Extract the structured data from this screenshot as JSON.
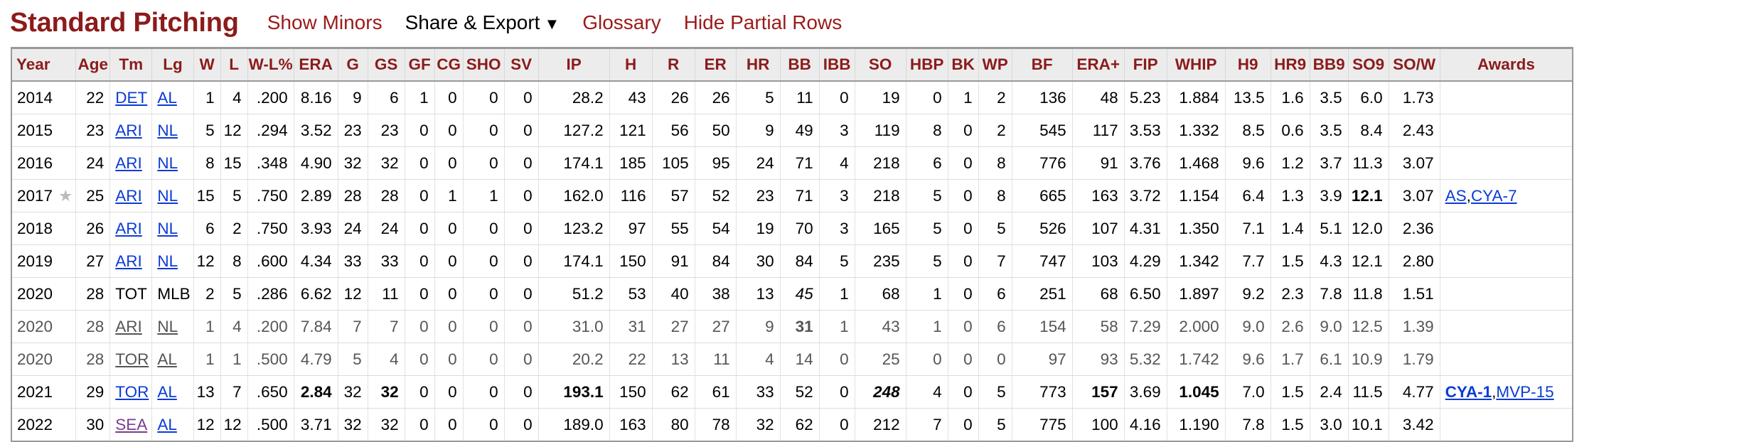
{
  "header": {
    "title": "Standard Pitching",
    "show_minors": "Show Minors",
    "share_export": "Share & Export",
    "share_caret": "▼",
    "glossary": "Glossary",
    "hide_partial": "Hide Partial Rows"
  },
  "table": {
    "columns": [
      "Year",
      "Age",
      "Tm",
      "Lg",
      "W",
      "L",
      "W-L%",
      "ERA",
      "G",
      "GS",
      "GF",
      "CG",
      "SHO",
      "SV",
      "IP",
      "H",
      "R",
      "ER",
      "HR",
      "BB",
      "IBB",
      "SO",
      "HBP",
      "BK",
      "WP",
      "BF",
      "ERA+",
      "FIP",
      "WHIP",
      "H9",
      "HR9",
      "BB9",
      "SO9",
      "SO/W",
      "Awards"
    ],
    "rows": [
      {
        "year": "2014",
        "age": "22",
        "tm": "DET",
        "lg": "AL",
        "w": "1",
        "l": "4",
        "wlp": ".200",
        "era": "8.16",
        "g": "9",
        "gs": "6",
        "gf": "1",
        "cg": "0",
        "sho": "0",
        "sv": "0",
        "ip": "28.2",
        "h": "43",
        "r": "26",
        "er": "26",
        "hr": "5",
        "bb": "11",
        "ibb": "0",
        "so": "19",
        "hbp": "0",
        "bk": "1",
        "wp": "2",
        "bf": "136",
        "eraplus": "48",
        "fip": "5.23",
        "whip": "1.884",
        "h9": "13.5",
        "hr9": "1.6",
        "bb9": "3.5",
        "so9": "6.0",
        "sow": "1.73",
        "awards": []
      },
      {
        "year": "2015",
        "age": "23",
        "tm": "ARI",
        "lg": "NL",
        "w": "5",
        "l": "12",
        "wlp": ".294",
        "era": "3.52",
        "g": "23",
        "gs": "23",
        "gf": "0",
        "cg": "0",
        "sho": "0",
        "sv": "0",
        "ip": "127.2",
        "h": "121",
        "r": "56",
        "er": "50",
        "hr": "9",
        "bb": "49",
        "ibb": "3",
        "so": "119",
        "hbp": "8",
        "bk": "0",
        "wp": "2",
        "bf": "545",
        "eraplus": "117",
        "fip": "3.53",
        "whip": "1.332",
        "h9": "8.5",
        "hr9": "0.6",
        "bb9": "3.5",
        "so9": "8.4",
        "sow": "2.43",
        "awards": []
      },
      {
        "year": "2016",
        "age": "24",
        "tm": "ARI",
        "lg": "NL",
        "w": "8",
        "l": "15",
        "wlp": ".348",
        "era": "4.90",
        "g": "32",
        "gs": "32",
        "gf": "0",
        "cg": "0",
        "sho": "0",
        "sv": "0",
        "ip": "174.1",
        "h": "185",
        "r": "105",
        "er": "95",
        "hr": "24",
        "bb": "71",
        "ibb": "4",
        "so": "218",
        "hbp": "6",
        "bk": "0",
        "wp": "8",
        "bf": "776",
        "eraplus": "91",
        "fip": "3.76",
        "whip": "1.468",
        "h9": "9.6",
        "hr9": "1.2",
        "bb9": "3.7",
        "so9": "11.3",
        "sow": "3.07",
        "awards": []
      },
      {
        "year": "2017",
        "star": "★",
        "age": "25",
        "tm": "ARI",
        "lg": "NL",
        "w": "15",
        "l": "5",
        "wlp": ".750",
        "era": "2.89",
        "g": "28",
        "gs": "28",
        "gf": "0",
        "cg": "1",
        "sho": "1",
        "sv": "0",
        "ip": "162.0",
        "h": "116",
        "r": "57",
        "er": "52",
        "hr": "23",
        "bb": "71",
        "ibb": "3",
        "so": "218",
        "hbp": "5",
        "bk": "0",
        "wp": "8",
        "bf": "665",
        "eraplus": "163",
        "fip": "3.72",
        "whip": "1.154",
        "h9": "6.4",
        "hr9": "1.3",
        "bb9": "3.9",
        "so9": "12.1",
        "sow": "3.07",
        "awards": [
          "AS",
          "CYA-7"
        ]
      },
      {
        "year": "2018",
        "age": "26",
        "tm": "ARI",
        "lg": "NL",
        "w": "6",
        "l": "2",
        "wlp": ".750",
        "era": "3.93",
        "g": "24",
        "gs": "24",
        "gf": "0",
        "cg": "0",
        "sho": "0",
        "sv": "0",
        "ip": "123.2",
        "h": "97",
        "r": "55",
        "er": "54",
        "hr": "19",
        "bb": "70",
        "ibb": "3",
        "so": "165",
        "hbp": "5",
        "bk": "0",
        "wp": "5",
        "bf": "526",
        "eraplus": "107",
        "fip": "4.31",
        "whip": "1.350",
        "h9": "7.1",
        "hr9": "1.4",
        "bb9": "5.1",
        "so9": "12.0",
        "sow": "2.36",
        "awards": []
      },
      {
        "year": "2019",
        "age": "27",
        "tm": "ARI",
        "lg": "NL",
        "w": "12",
        "l": "8",
        "wlp": ".600",
        "era": "4.34",
        "g": "33",
        "gs": "33",
        "gf": "0",
        "cg": "0",
        "sho": "0",
        "sv": "0",
        "ip": "174.1",
        "h": "150",
        "r": "91",
        "er": "84",
        "hr": "30",
        "bb": "84",
        "ibb": "5",
        "so": "235",
        "hbp": "5",
        "bk": "0",
        "wp": "7",
        "bf": "747",
        "eraplus": "103",
        "fip": "4.29",
        "whip": "1.342",
        "h9": "7.7",
        "hr9": "1.5",
        "bb9": "4.3",
        "so9": "12.1",
        "sow": "2.80",
        "awards": []
      },
      {
        "year": "2020",
        "age": "28",
        "tm": "TOT",
        "lg": "MLB",
        "w": "2",
        "l": "5",
        "wlp": ".286",
        "era": "6.62",
        "g": "12",
        "gs": "11",
        "gf": "0",
        "cg": "0",
        "sho": "0",
        "sv": "0",
        "ip": "51.2",
        "h": "53",
        "r": "40",
        "er": "38",
        "hr": "13",
        "bb": "45",
        "ibb": "1",
        "so": "68",
        "hbp": "1",
        "bk": "0",
        "wp": "6",
        "bf": "251",
        "eraplus": "68",
        "fip": "6.50",
        "whip": "1.897",
        "h9": "9.2",
        "hr9": "2.3",
        "bb9": "7.8",
        "so9": "11.8",
        "sow": "1.51",
        "awards": []
      },
      {
        "year": "2020",
        "age": "28",
        "tm": "ARI",
        "lg": "NL",
        "w": "1",
        "l": "4",
        "wlp": ".200",
        "era": "7.84",
        "g": "7",
        "gs": "7",
        "gf": "0",
        "cg": "0",
        "sho": "0",
        "sv": "0",
        "ip": "31.0",
        "h": "31",
        "r": "27",
        "er": "27",
        "hr": "9",
        "bb": "31",
        "ibb": "1",
        "so": "43",
        "hbp": "1",
        "bk": "0",
        "wp": "6",
        "bf": "154",
        "eraplus": "58",
        "fip": "7.29",
        "whip": "2.000",
        "h9": "9.0",
        "hr9": "2.6",
        "bb9": "9.0",
        "so9": "12.5",
        "sow": "1.39",
        "awards": []
      },
      {
        "year": "2020",
        "age": "28",
        "tm": "TOR",
        "lg": "AL",
        "w": "1",
        "l": "1",
        "wlp": ".500",
        "era": "4.79",
        "g": "5",
        "gs": "4",
        "gf": "0",
        "cg": "0",
        "sho": "0",
        "sv": "0",
        "ip": "20.2",
        "h": "22",
        "r": "13",
        "er": "11",
        "hr": "4",
        "bb": "14",
        "ibb": "0",
        "so": "25",
        "hbp": "0",
        "bk": "0",
        "wp": "0",
        "bf": "97",
        "eraplus": "93",
        "fip": "5.32",
        "whip": "1.742",
        "h9": "9.6",
        "hr9": "1.7",
        "bb9": "6.1",
        "so9": "10.9",
        "sow": "1.79",
        "awards": []
      },
      {
        "year": "2021",
        "age": "29",
        "tm": "TOR",
        "lg": "AL",
        "w": "13",
        "l": "7",
        "wlp": ".650",
        "era": "2.84",
        "g": "32",
        "gs": "32",
        "gf": "0",
        "cg": "0",
        "sho": "0",
        "sv": "0",
        "ip": "193.1",
        "h": "150",
        "r": "62",
        "er": "61",
        "hr": "33",
        "bb": "52",
        "ibb": "0",
        "so": "248",
        "hbp": "4",
        "bk": "0",
        "wp": "5",
        "bf": "773",
        "eraplus": "157",
        "fip": "3.69",
        "whip": "1.045",
        "h9": "7.0",
        "hr9": "1.5",
        "bb9": "2.4",
        "so9": "11.5",
        "sow": "4.77",
        "awards": [
          "CYA-1",
          "MVP-15"
        ]
      },
      {
        "year": "2022",
        "age": "30",
        "tm": "SEA",
        "lg": "AL",
        "w": "12",
        "l": "12",
        "wlp": ".500",
        "era": "3.71",
        "g": "32",
        "gs": "32",
        "gf": "0",
        "cg": "0",
        "sho": "0",
        "sv": "0",
        "ip": "189.0",
        "h": "163",
        "r": "80",
        "er": "78",
        "hr": "32",
        "bb": "62",
        "ibb": "0",
        "so": "212",
        "hbp": "7",
        "bk": "0",
        "wp": "5",
        "bf": "775",
        "eraplus": "100",
        "fip": "4.16",
        "whip": "1.190",
        "h9": "7.8",
        "hr9": "1.5",
        "bb9": "3.0",
        "so9": "10.1",
        "sow": "3.42",
        "awards": []
      }
    ]
  }
}
